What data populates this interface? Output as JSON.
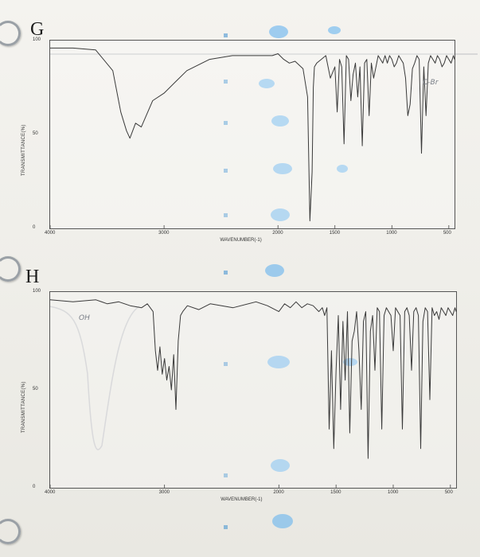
{
  "chart_data": [
    {
      "type": "line",
      "panel_label": "G",
      "xlabel": "WAVENUMBER(-1)",
      "ylabel": "TRANSMITTANCE(%)",
      "xlim": [
        4000,
        450
      ],
      "ylim": [
        0,
        100
      ],
      "x_ticks": [
        "4000",
        "3000",
        "2000",
        "1500",
        "1000",
        "500"
      ],
      "y_ticks": [
        "100",
        "50",
        "0"
      ],
      "annotations": [
        "C-Br"
      ],
      "grid": false,
      "series": [
        {
          "x": [
            4000,
            3800,
            3600,
            3450,
            3380,
            3330,
            3300,
            3250,
            3200,
            3100,
            3000,
            2900,
            2800,
            2600,
            2400,
            2200,
            2050,
            2000,
            1950,
            1900,
            1850,
            1780,
            1740,
            1720,
            1700,
            1690,
            1680,
            1660,
            1620,
            1580,
            1540,
            1500,
            1480,
            1460,
            1440,
            1420,
            1400,
            1380,
            1360,
            1340,
            1320,
            1300,
            1280,
            1260,
            1240,
            1220,
            1200,
            1180,
            1160,
            1140,
            1120,
            1100,
            1080,
            1060,
            1040,
            1020,
            1000,
            980,
            960,
            940,
            920,
            900,
            880,
            860,
            840,
            820,
            800,
            780,
            760,
            740,
            720,
            700,
            680,
            660,
            640,
            620,
            600,
            580,
            560,
            540,
            520,
            500,
            480,
            460,
            450
          ],
          "y": [
            96,
            96,
            95,
            84,
            62,
            52,
            48,
            56,
            54,
            68,
            72,
            78,
            84,
            90,
            92,
            92,
            92,
            93,
            90,
            88,
            89,
            85,
            70,
            4,
            30,
            75,
            86,
            88,
            90,
            92,
            80,
            86,
            62,
            90,
            86,
            45,
            92,
            90,
            68,
            82,
            88,
            70,
            86,
            44,
            88,
            90,
            60,
            88,
            80,
            86,
            92,
            90,
            88,
            92,
            88,
            92,
            90,
            86,
            88,
            92,
            90,
            88,
            80,
            60,
            66,
            85,
            88,
            92,
            90,
            40,
            86,
            60,
            88,
            92,
            90,
            88,
            92,
            90,
            86,
            88,
            92,
            90,
            88,
            92,
            90
          ]
        }
      ]
    },
    {
      "type": "line",
      "panel_label": "H",
      "xlabel": "WAVENUMBER(-1)",
      "ylabel": "TRANSMITTANCE(%)",
      "xlim": [
        4000,
        450
      ],
      "ylim": [
        0,
        100
      ],
      "x_ticks": [
        "4000",
        "3000",
        "2000",
        "1500",
        "1000",
        "500"
      ],
      "y_ticks": [
        "100",
        "50",
        "0"
      ],
      "annotations": [
        "OH"
      ],
      "grid": false,
      "series": [
        {
          "x": [
            4000,
            3800,
            3600,
            3500,
            3400,
            3300,
            3200,
            3150,
            3100,
            3080,
            3060,
            3040,
            3020,
            3000,
            2980,
            2960,
            2940,
            2920,
            2900,
            2880,
            2860,
            2840,
            2800,
            2700,
            2600,
            2400,
            2200,
            2100,
            2000,
            1950,
            1900,
            1850,
            1800,
            1750,
            1700,
            1650,
            1620,
            1600,
            1580,
            1560,
            1540,
            1520,
            1500,
            1480,
            1460,
            1440,
            1420,
            1400,
            1380,
            1360,
            1340,
            1320,
            1300,
            1280,
            1260,
            1240,
            1220,
            1200,
            1180,
            1160,
            1140,
            1120,
            1100,
            1080,
            1060,
            1040,
            1020,
            1000,
            980,
            960,
            940,
            920,
            900,
            880,
            860,
            840,
            820,
            800,
            780,
            760,
            740,
            720,
            700,
            680,
            660,
            640,
            620,
            600,
            580,
            560,
            540,
            520,
            500,
            480,
            460,
            450
          ],
          "y": [
            96,
            95,
            96,
            94,
            95,
            93,
            92,
            94,
            90,
            70,
            60,
            72,
            58,
            66,
            55,
            62,
            50,
            68,
            40,
            75,
            88,
            90,
            93,
            91,
            94,
            92,
            95,
            93,
            90,
            94,
            92,
            95,
            92,
            94,
            93,
            90,
            92,
            88,
            92,
            30,
            70,
            20,
            60,
            88,
            40,
            85,
            55,
            90,
            28,
            75,
            80,
            90,
            70,
            40,
            85,
            90,
            15,
            80,
            88,
            60,
            92,
            90,
            30,
            88,
            92,
            90,
            88,
            70,
            92,
            90,
            88,
            30,
            90,
            92,
            88,
            60,
            90,
            92,
            88,
            20,
            85,
            92,
            90,
            45,
            92,
            88,
            90,
            86,
            92,
            90,
            88,
            92,
            90,
            88,
            92,
            90
          ]
        }
      ]
    }
  ],
  "colors": {
    "trace": "#3a3a3a",
    "bleed_trace": "#b9bcc0",
    "bleed_blue": "#4aa6e8"
  }
}
